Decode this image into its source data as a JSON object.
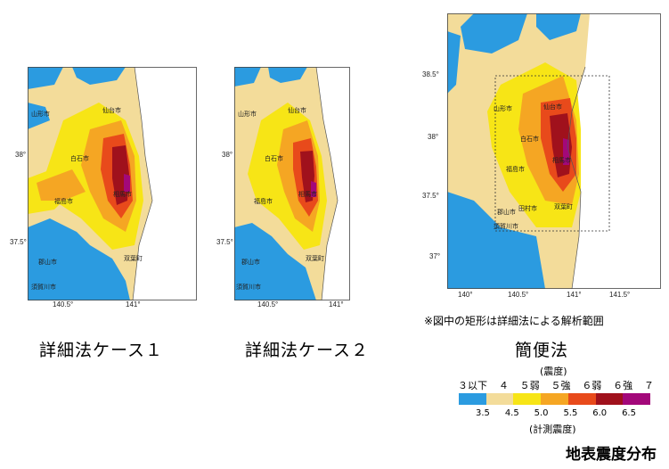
{
  "maps": [
    {
      "caption": "詳細法ケース１",
      "lat_ticks": [
        "38°",
        "37.5°"
      ],
      "lon_ticks": [
        "140.5°",
        "141°"
      ],
      "cities": [
        "山形市",
        "仙台市",
        "白石市",
        "福島市",
        "相馬市",
        "郡山市",
        "須賀川市",
        "双葉町"
      ]
    },
    {
      "caption": "詳細法ケース２",
      "lat_ticks": [
        "38°",
        "37.5°"
      ],
      "lon_ticks": [
        "140.5°",
        "141°"
      ],
      "cities": [
        "山形市",
        "仙台市",
        "白石市",
        "福島市",
        "相馬市",
        "郡山市",
        "須賀川市",
        "双葉町"
      ]
    },
    {
      "caption": "簡便法",
      "lat_ticks": [
        "38.5°",
        "38°",
        "37.5°",
        "37°"
      ],
      "lon_ticks": [
        "140°",
        "140.5°",
        "141°",
        "141.5°"
      ],
      "cities": [
        "山形市",
        "仙台市",
        "白石市",
        "福島市",
        "相馬市",
        "郡山市",
        "田村市",
        "須賀川市",
        "双葉町"
      ]
    }
  ],
  "note": "※図中の矩形は詳細法による解析範囲",
  "legend": {
    "top_title": "(震度)",
    "intensity_labels": [
      "３以下",
      "４",
      "５弱",
      "５強",
      "６弱",
      "６強",
      "７"
    ],
    "value_labels": [
      "3.5",
      "4.5",
      "5.0",
      "5.5",
      "6.0",
      "6.5"
    ],
    "bottom_title": "(計測震度)",
    "colors": [
      "#2b9be0",
      "#f3dc9a",
      "#f7e516",
      "#f5a623",
      "#e84a1b",
      "#a0111c",
      "#a3087a"
    ]
  },
  "title": "地表震度分布"
}
